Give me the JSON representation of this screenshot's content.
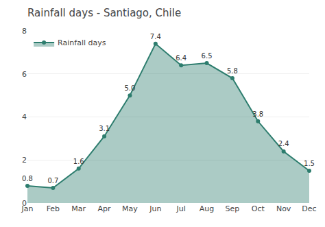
{
  "chart_data": {
    "type": "area",
    "title": "Rainfall days - Santiago, Chile",
    "categories": [
      "Jan",
      "Feb",
      "Mar",
      "Apr",
      "May",
      "Jun",
      "Jul",
      "Aug",
      "Sep",
      "Oct",
      "Nov",
      "Dec"
    ],
    "series": [
      {
        "name": "Rainfall days",
        "color": "#2d7d6e",
        "values": [
          0.8,
          0.7,
          1.6,
          3.1,
          5.0,
          7.4,
          6.4,
          6.5,
          5.8,
          3.8,
          2.4,
          1.5
        ],
        "value_labels": [
          "0.8",
          "0.7",
          "1.6",
          "3.1",
          "5.0",
          "7.4",
          "6.4",
          "6.5",
          "5.8",
          "3.8",
          "2.4",
          "1.5"
        ]
      }
    ],
    "marker": "circle",
    "ylim": [
      0,
      8
    ],
    "yticks": [
      0,
      2,
      4,
      6,
      8
    ],
    "grid": true,
    "legend": "upper left",
    "data_labels": true
  }
}
